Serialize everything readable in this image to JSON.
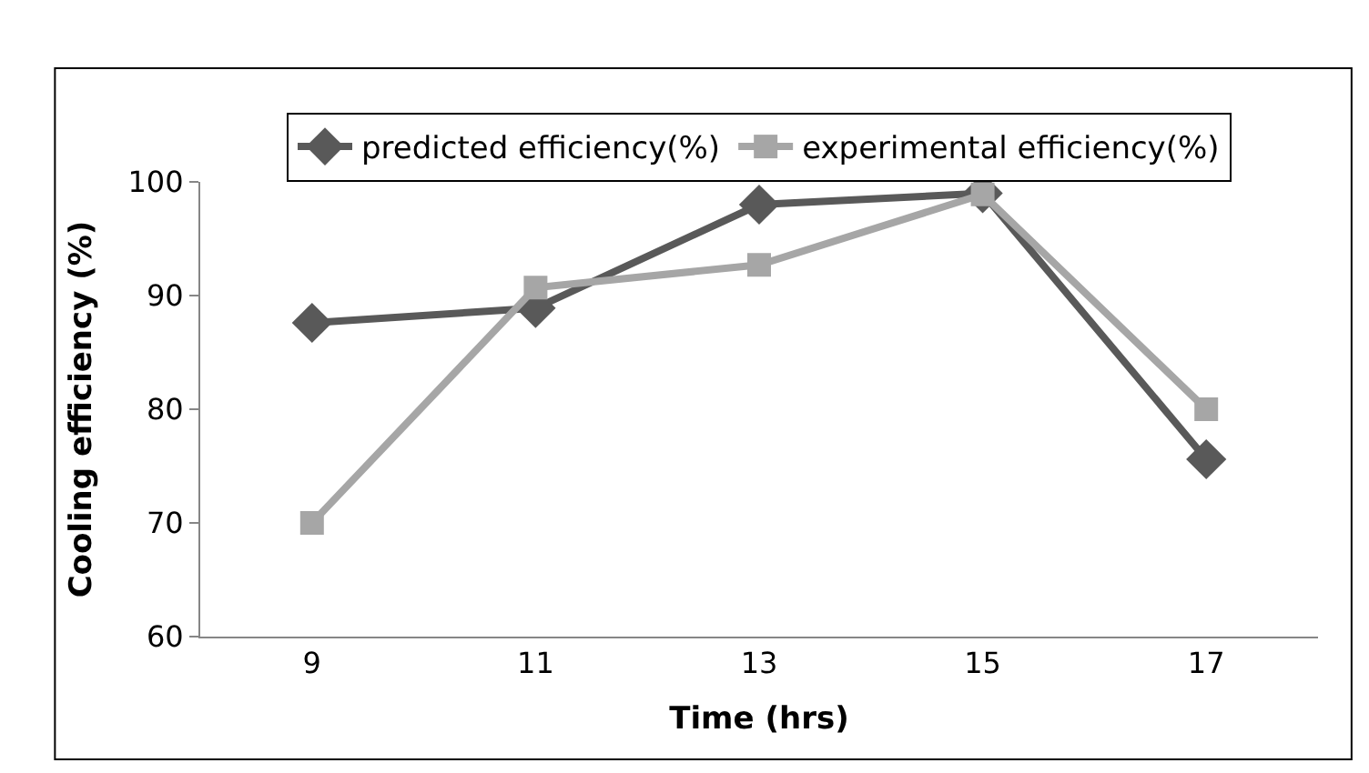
{
  "chart_data": {
    "type": "line",
    "xlabel": "Time (hrs)",
    "ylabel": "Cooling efficiency (%)",
    "categories": [
      "9",
      "11",
      "13",
      "15",
      "17"
    ],
    "series": [
      {
        "name": "predicted efficiency(%)",
        "color": "#595959",
        "marker": "diamond",
        "values": [
          87.6,
          88.9,
          98.0,
          99.0,
          75.6
        ]
      },
      {
        "name": "experimental efficiency(%)",
        "color": "#a6a6a6",
        "marker": "square",
        "values": [
          70.0,
          90.7,
          92.7,
          98.9,
          80.0
        ]
      }
    ],
    "ylim": [
      60,
      100
    ],
    "yticks": [
      60,
      70,
      80,
      90,
      100
    ],
    "legend": "top",
    "line_style": "solid"
  }
}
